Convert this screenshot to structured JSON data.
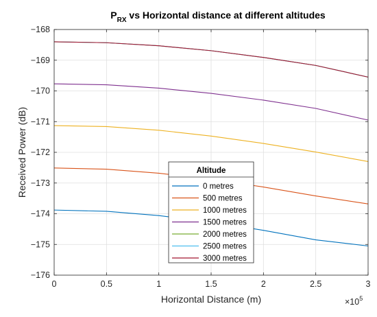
{
  "chart_data": {
    "type": "line",
    "title": {
      "main": "P",
      "subscript": "RX",
      "rest": " vs Horizontal distance at different altitudes"
    },
    "xlabel": "Horizontal Distance (m)",
    "ylabel": "Received Power (dB)",
    "x_exponent_label": {
      "base": "×10",
      "exp": "5"
    },
    "xlim": [
      0,
      300000
    ],
    "ylim": [
      -176,
      -168
    ],
    "xticks": [
      0,
      50000,
      100000,
      150000,
      200000,
      250000,
      300000
    ],
    "xtick_labels": [
      "0",
      "0.5",
      "1",
      "1.5",
      "2",
      "2.5",
      "3"
    ],
    "yticks": [
      -176,
      -175,
      -174,
      -173,
      -172,
      -171,
      -170,
      -169,
      -168
    ],
    "ytick_labels": [
      "−176",
      "−175",
      "−174",
      "−173",
      "−172",
      "−171",
      "−170",
      "−169",
      "−168"
    ],
    "grid": true,
    "legend": {
      "title": "Altitude",
      "placement": "bottom-center"
    },
    "x": [
      0,
      50000,
      100000,
      150000,
      200000,
      250000,
      300000
    ],
    "series": [
      {
        "name": "0 metres",
        "color": "#0072BD",
        "values": [
          -173.88,
          -173.92,
          -174.06,
          -174.27,
          -174.54,
          -174.85,
          -175.05
        ]
      },
      {
        "name": "500 metres",
        "color": "#D95319",
        "values": [
          -172.51,
          -172.55,
          -172.68,
          -172.88,
          -173.13,
          -173.42,
          -173.68
        ]
      },
      {
        "name": "1000 metres",
        "color": "#EDB120",
        "values": [
          -171.13,
          -171.16,
          -171.28,
          -171.47,
          -171.71,
          -171.99,
          -172.3
        ]
      },
      {
        "name": "1500 metres",
        "color": "#7E2F8E",
        "values": [
          -169.77,
          -169.8,
          -169.91,
          -170.08,
          -170.3,
          -170.57,
          -170.95
        ]
      },
      {
        "name": "2000 metres",
        "color": "#77AC30",
        "values": [
          -168.4,
          -168.43,
          -168.53,
          -168.69,
          -168.91,
          -169.17,
          -169.55
        ]
      },
      {
        "name": "2500 metres",
        "color": "#4DBEEE",
        "values": [
          -168.4,
          -168.43,
          -168.53,
          -168.69,
          -168.91,
          -169.17,
          -169.55
        ]
      },
      {
        "name": "3000 metres",
        "color": "#A2142F",
        "values": [
          -168.4,
          -168.43,
          -168.53,
          -168.69,
          -168.91,
          -169.17,
          -169.55
        ]
      }
    ]
  }
}
